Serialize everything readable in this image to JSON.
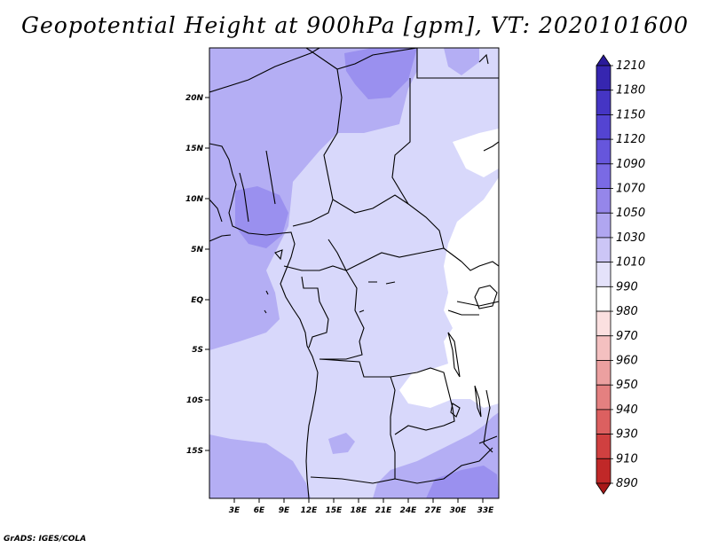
{
  "title": "Geopotential Height at 900hPa [gpm], VT: 2020101600",
  "credit": "GrADS: IGES/COLA",
  "map": {
    "lon_labels": [
      "3E",
      "6E",
      "9E",
      "12E",
      "15E",
      "18E",
      "21E",
      "24E",
      "27E",
      "30E",
      "33E"
    ],
    "lat_labels": [
      "20N",
      "15N",
      "10N",
      "5N",
      "EQ",
      "5S",
      "10S",
      "15S"
    ]
  },
  "colorbar": {
    "levels": [
      "1210",
      "1180",
      "1150",
      "1120",
      "1090",
      "1070",
      "1050",
      "1030",
      "1010",
      "990",
      "980",
      "970",
      "960",
      "950",
      "940",
      "930",
      "910",
      "890"
    ],
    "colors": [
      "#2a1a9a",
      "#3626b0",
      "#4535c4",
      "#5444d2",
      "#6656dc",
      "#7a6ae4",
      "#9586ea",
      "#b0a6f0",
      "#ccc6f6",
      "#e4e2fa",
      "#ffffff",
      "#fbe0e0",
      "#f4c0c0",
      "#eca0a0",
      "#e48080",
      "#dc6060",
      "#d04040",
      "#c02828",
      "#a81818"
    ]
  },
  "field_colors": {
    "1010_1030": "#d8d8fb",
    "1030_1050": "#b4aef4",
    "1050_1070": "#9a90ef",
    "990_1010": "#ffffff"
  }
}
